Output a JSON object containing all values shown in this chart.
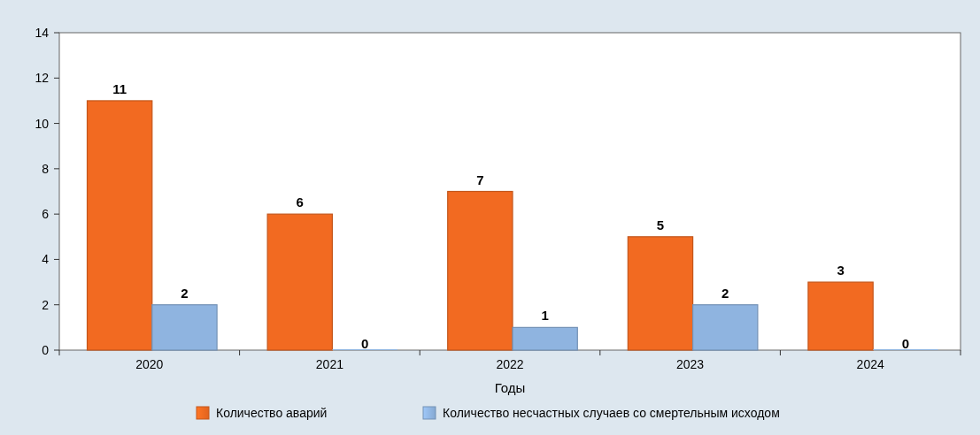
{
  "chart_data": {
    "type": "bar",
    "xlabel": "Годы",
    "categories": [
      "2020",
      "2021",
      "2022",
      "2023",
      "2024"
    ],
    "series": [
      {
        "name": "Количество аварий",
        "color": "#f26a21",
        "values": [
          11,
          6,
          7,
          5,
          3
        ]
      },
      {
        "name": "Количество несчастных случаев со смертельным исходом",
        "color": "#8fb4e0",
        "values": [
          2,
          0,
          1,
          2,
          0
        ]
      }
    ],
    "ylim": [
      0,
      14
    ],
    "yticks": [
      0,
      2,
      4,
      6,
      8,
      10,
      12,
      14
    ],
    "data_labels": true,
    "legend": "bottom",
    "grid": false
  }
}
